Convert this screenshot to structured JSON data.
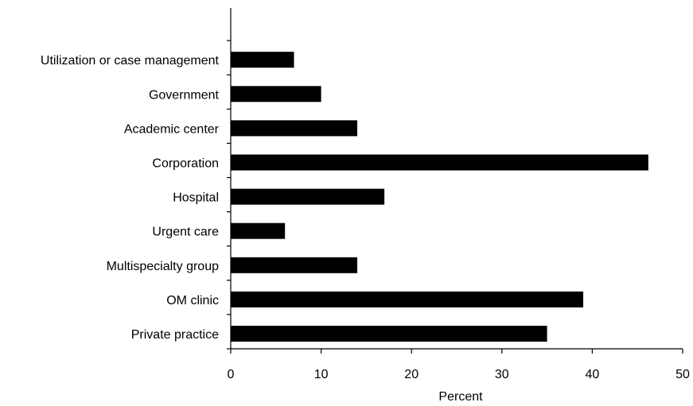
{
  "chart_data": {
    "type": "bar",
    "orientation": "horizontal",
    "categories": [
      "Private practice",
      "OM clinic",
      "Multispecialty group",
      "Urgent care",
      "Hospital",
      "Corporation",
      "Academic center",
      "Government",
      "Utilization or case management"
    ],
    "values": [
      35,
      39,
      14,
      6,
      17,
      46.2,
      14,
      10,
      7
    ],
    "xlabel": "Percent",
    "ylabel": "",
    "xlim": [
      0,
      50
    ],
    "xticks": [
      0,
      10,
      20,
      30,
      40,
      50
    ],
    "xtick_labels": [
      "0",
      "10",
      "20",
      "30",
      "40",
      "50"
    ],
    "grid": false,
    "legend": "none",
    "bar_color": "#000000"
  }
}
